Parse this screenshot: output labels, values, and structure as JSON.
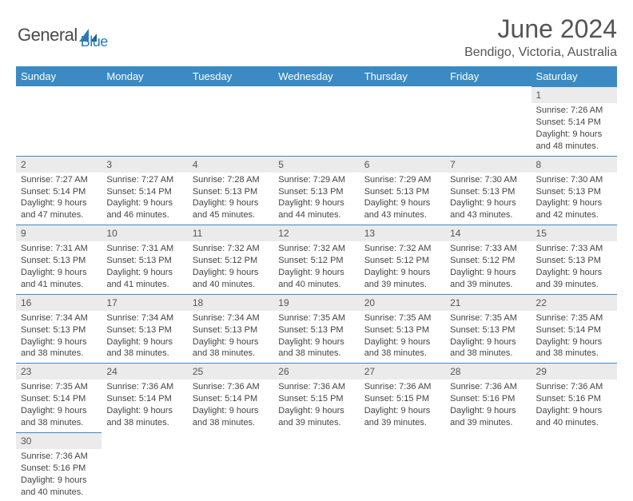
{
  "logo": {
    "general": "General",
    "blue": "Blue"
  },
  "title": "June 2024",
  "location": "Bendigo, Victoria, Australia",
  "colors": {
    "header_bg": "#3b8ac4",
    "header_text": "#ffffff",
    "daynum_bg": "#ebebeb",
    "border": "#3b8ac4",
    "text": "#444444"
  },
  "day_headers": [
    "Sunday",
    "Monday",
    "Tuesday",
    "Wednesday",
    "Thursday",
    "Friday",
    "Saturday"
  ],
  "weeks": [
    [
      null,
      null,
      null,
      null,
      null,
      null,
      {
        "n": "1",
        "sr": "Sunrise: 7:26 AM",
        "ss": "Sunset: 5:14 PM",
        "dl": "Daylight: 9 hours and 48 minutes."
      }
    ],
    [
      {
        "n": "2",
        "sr": "Sunrise: 7:27 AM",
        "ss": "Sunset: 5:14 PM",
        "dl": "Daylight: 9 hours and 47 minutes."
      },
      {
        "n": "3",
        "sr": "Sunrise: 7:27 AM",
        "ss": "Sunset: 5:14 PM",
        "dl": "Daylight: 9 hours and 46 minutes."
      },
      {
        "n": "4",
        "sr": "Sunrise: 7:28 AM",
        "ss": "Sunset: 5:13 PM",
        "dl": "Daylight: 9 hours and 45 minutes."
      },
      {
        "n": "5",
        "sr": "Sunrise: 7:29 AM",
        "ss": "Sunset: 5:13 PM",
        "dl": "Daylight: 9 hours and 44 minutes."
      },
      {
        "n": "6",
        "sr": "Sunrise: 7:29 AM",
        "ss": "Sunset: 5:13 PM",
        "dl": "Daylight: 9 hours and 43 minutes."
      },
      {
        "n": "7",
        "sr": "Sunrise: 7:30 AM",
        "ss": "Sunset: 5:13 PM",
        "dl": "Daylight: 9 hours and 43 minutes."
      },
      {
        "n": "8",
        "sr": "Sunrise: 7:30 AM",
        "ss": "Sunset: 5:13 PM",
        "dl": "Daylight: 9 hours and 42 minutes."
      }
    ],
    [
      {
        "n": "9",
        "sr": "Sunrise: 7:31 AM",
        "ss": "Sunset: 5:13 PM",
        "dl": "Daylight: 9 hours and 41 minutes."
      },
      {
        "n": "10",
        "sr": "Sunrise: 7:31 AM",
        "ss": "Sunset: 5:13 PM",
        "dl": "Daylight: 9 hours and 41 minutes."
      },
      {
        "n": "11",
        "sr": "Sunrise: 7:32 AM",
        "ss": "Sunset: 5:12 PM",
        "dl": "Daylight: 9 hours and 40 minutes."
      },
      {
        "n": "12",
        "sr": "Sunrise: 7:32 AM",
        "ss": "Sunset: 5:12 PM",
        "dl": "Daylight: 9 hours and 40 minutes."
      },
      {
        "n": "13",
        "sr": "Sunrise: 7:32 AM",
        "ss": "Sunset: 5:12 PM",
        "dl": "Daylight: 9 hours and 39 minutes."
      },
      {
        "n": "14",
        "sr": "Sunrise: 7:33 AM",
        "ss": "Sunset: 5:12 PM",
        "dl": "Daylight: 9 hours and 39 minutes."
      },
      {
        "n": "15",
        "sr": "Sunrise: 7:33 AM",
        "ss": "Sunset: 5:13 PM",
        "dl": "Daylight: 9 hours and 39 minutes."
      }
    ],
    [
      {
        "n": "16",
        "sr": "Sunrise: 7:34 AM",
        "ss": "Sunset: 5:13 PM",
        "dl": "Daylight: 9 hours and 38 minutes."
      },
      {
        "n": "17",
        "sr": "Sunrise: 7:34 AM",
        "ss": "Sunset: 5:13 PM",
        "dl": "Daylight: 9 hours and 38 minutes."
      },
      {
        "n": "18",
        "sr": "Sunrise: 7:34 AM",
        "ss": "Sunset: 5:13 PM",
        "dl": "Daylight: 9 hours and 38 minutes."
      },
      {
        "n": "19",
        "sr": "Sunrise: 7:35 AM",
        "ss": "Sunset: 5:13 PM",
        "dl": "Daylight: 9 hours and 38 minutes."
      },
      {
        "n": "20",
        "sr": "Sunrise: 7:35 AM",
        "ss": "Sunset: 5:13 PM",
        "dl": "Daylight: 9 hours and 38 minutes."
      },
      {
        "n": "21",
        "sr": "Sunrise: 7:35 AM",
        "ss": "Sunset: 5:13 PM",
        "dl": "Daylight: 9 hours and 38 minutes."
      },
      {
        "n": "22",
        "sr": "Sunrise: 7:35 AM",
        "ss": "Sunset: 5:14 PM",
        "dl": "Daylight: 9 hours and 38 minutes."
      }
    ],
    [
      {
        "n": "23",
        "sr": "Sunrise: 7:35 AM",
        "ss": "Sunset: 5:14 PM",
        "dl": "Daylight: 9 hours and 38 minutes."
      },
      {
        "n": "24",
        "sr": "Sunrise: 7:36 AM",
        "ss": "Sunset: 5:14 PM",
        "dl": "Daylight: 9 hours and 38 minutes."
      },
      {
        "n": "25",
        "sr": "Sunrise: 7:36 AM",
        "ss": "Sunset: 5:14 PM",
        "dl": "Daylight: 9 hours and 38 minutes."
      },
      {
        "n": "26",
        "sr": "Sunrise: 7:36 AM",
        "ss": "Sunset: 5:15 PM",
        "dl": "Daylight: 9 hours and 39 minutes."
      },
      {
        "n": "27",
        "sr": "Sunrise: 7:36 AM",
        "ss": "Sunset: 5:15 PM",
        "dl": "Daylight: 9 hours and 39 minutes."
      },
      {
        "n": "28",
        "sr": "Sunrise: 7:36 AM",
        "ss": "Sunset: 5:16 PM",
        "dl": "Daylight: 9 hours and 39 minutes."
      },
      {
        "n": "29",
        "sr": "Sunrise: 7:36 AM",
        "ss": "Sunset: 5:16 PM",
        "dl": "Daylight: 9 hours and 40 minutes."
      }
    ],
    [
      {
        "n": "30",
        "sr": "Sunrise: 7:36 AM",
        "ss": "Sunset: 5:16 PM",
        "dl": "Daylight: 9 hours and 40 minutes."
      },
      null,
      null,
      null,
      null,
      null,
      null
    ]
  ]
}
